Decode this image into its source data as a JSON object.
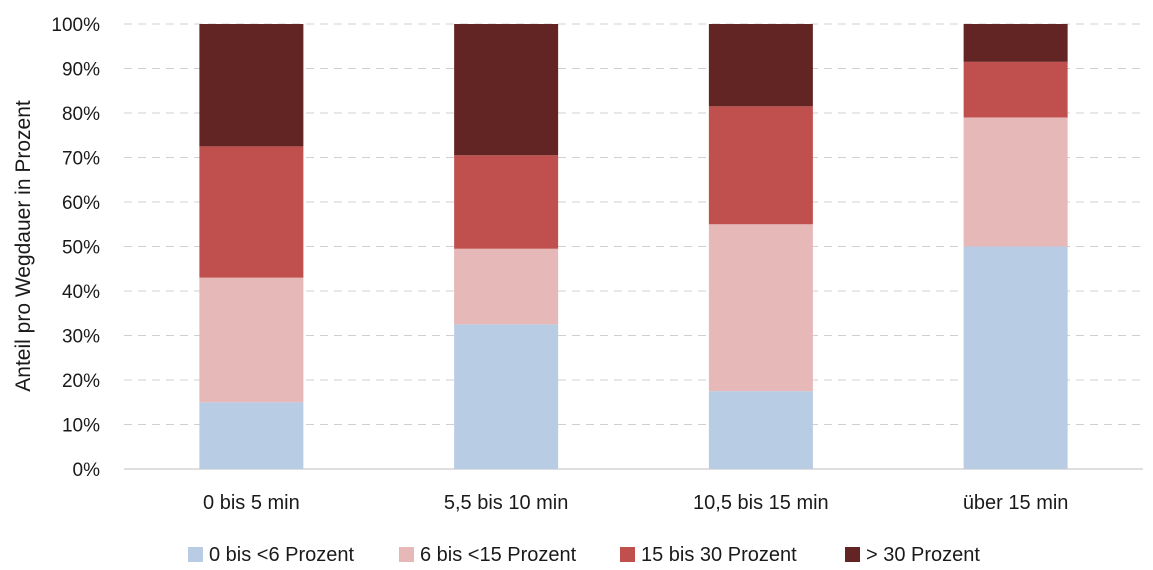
{
  "chart_data": {
    "type": "bar",
    "stacked": true,
    "categories": [
      "0 bis 5 min",
      "5,5 bis 10 min",
      "10,5 bis 15 min",
      "über 15 min"
    ],
    "series": [
      {
        "name": "0 bis <6 Prozent",
        "color": "#b8cce4",
        "values": [
          15,
          32.5,
          17.5,
          50
        ]
      },
      {
        "name": "6 bis <15 Prozent",
        "color": "#e6b8b7",
        "values": [
          28,
          17,
          37.5,
          29
        ]
      },
      {
        "name": "15 bis 30 Prozent",
        "color": "#c0504d",
        "values": [
          29.5,
          21,
          26.5,
          12.5
        ]
      },
      {
        "name": "> 30 Prozent",
        "color": "#632523",
        "values": [
          27.5,
          29.5,
          18.5,
          8.5
        ]
      }
    ],
    "ylabel": "Anteil pro Wegdauer in Prozent",
    "xlabel": "",
    "ylim": [
      0,
      100
    ],
    "yticks": [
      "0%",
      "10%",
      "20%",
      "30%",
      "40%",
      "50%",
      "60%",
      "70%",
      "80%",
      "90%",
      "100%"
    ],
    "grid": true,
    "legend_position": "bottom"
  }
}
